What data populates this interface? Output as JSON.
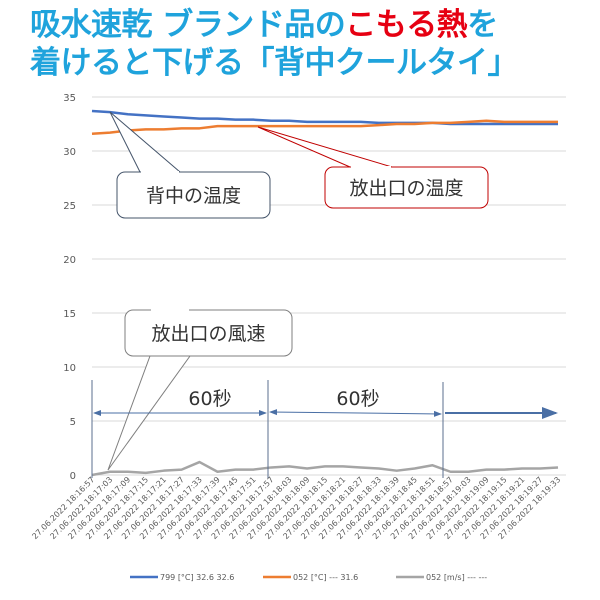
{
  "title": {
    "line1_a": "吸水速乾 ブランド品の",
    "line1_b": "こもる熱",
    "line1_c": "を",
    "line2": "着けると下げる「背中クールタイ」"
  },
  "chart_data": {
    "type": "line",
    "ylim": [
      0,
      35
    ],
    "yticks": [
      "0",
      "5",
      "10",
      "15",
      "20",
      "25",
      "30",
      "35"
    ],
    "grid": true,
    "legend_position": "bottom",
    "categories": [
      "27.06.2022 18:16:57",
      "27.06.2022 18:17:03",
      "27.06.2022 18:17:09",
      "27.06.2022 18:17:15",
      "27.06.2022 18:17:21",
      "27.06.2022 18:17:27",
      "27.06.2022 18:17:33",
      "27.06.2022 18:17:39",
      "27.06.2022 18:17:45",
      "27.06.2022 18:17:51",
      "27.06.2022 18:17:57",
      "27.06.2022 18:18:03",
      "27.06.2022 18:18:09",
      "27.06.2022 18:18:15",
      "27.06.2022 18:18:21",
      "27.06.2022 18:18:27",
      "27.06.2022 18:18:33",
      "27.06.2022 18:18:39",
      "27.06.2022 18:18:45",
      "27.06.2022 18:18:51",
      "27.06.2022 18:18:57",
      "27.06.2022 18:19:03",
      "27.06.2022 18:19:09",
      "27.06.2022 18:19:15",
      "27.06.2022 18:19:21",
      "27.06.2022 18:19:27",
      "27.06.2022 18:19:33"
    ],
    "series": [
      {
        "name": "799 [°C] 32.6 32.6",
        "color": "#4472c4",
        "values": [
          33.7,
          33.6,
          33.4,
          33.3,
          33.2,
          33.1,
          33.0,
          33.0,
          32.9,
          32.9,
          32.8,
          32.8,
          32.7,
          32.7,
          32.7,
          32.7,
          32.6,
          32.6,
          32.6,
          32.6,
          32.5,
          32.5,
          32.5,
          32.5,
          32.5,
          32.5,
          32.5
        ]
      },
      {
        "name": "052 [°C] --- 31.6",
        "color": "#ed7d31",
        "values": [
          31.6,
          31.7,
          31.9,
          32.0,
          32.0,
          32.1,
          32.1,
          32.3,
          32.3,
          32.3,
          32.3,
          32.3,
          32.3,
          32.3,
          32.3,
          32.3,
          32.4,
          32.5,
          32.5,
          32.6,
          32.6,
          32.7,
          32.8,
          32.7,
          32.7,
          32.7,
          32.7
        ]
      },
      {
        "name": "052 [m/s] --- ---",
        "color": "#a5a5a5",
        "values": [
          0.0,
          0.3,
          0.3,
          0.2,
          0.4,
          0.5,
          1.2,
          0.3,
          0.5,
          0.5,
          0.7,
          0.8,
          0.6,
          0.8,
          0.8,
          0.7,
          0.6,
          0.4,
          0.6,
          0.9,
          0.3,
          0.3,
          0.5,
          0.5,
          0.6,
          0.6,
          0.7
        ]
      }
    ],
    "annotations": {
      "back_temp": "背中の温度",
      "outlet_temp": "放出口の温度",
      "outlet_wind": "放出口の風速",
      "interval_1": "60秒",
      "interval_2": "60秒"
    }
  }
}
